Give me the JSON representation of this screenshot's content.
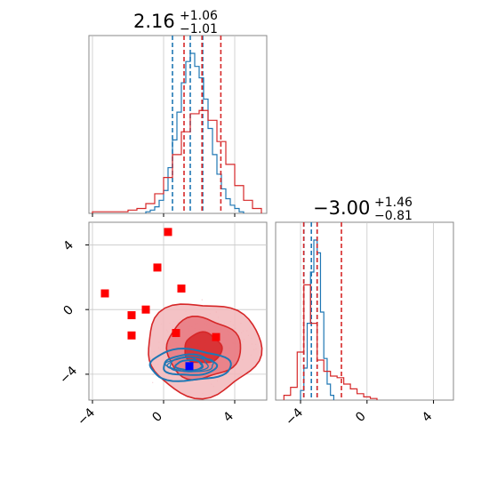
{
  "chart_data": [
    {
      "type": "histogram",
      "panel": "marginal-param-1",
      "title": {
        "median": "2.16",
        "upper": "+1.06",
        "lower": "−1.01"
      },
      "xlim": [
        -4.2,
        5.8
      ],
      "grid": true,
      "series": [
        {
          "color": "#1f77b4",
          "bin_edges": [
            -1.0,
            -0.75,
            -0.5,
            -0.25,
            0.0,
            0.25,
            0.5,
            0.75,
            1.0,
            1.25,
            1.5,
            1.75,
            2.0,
            2.25,
            2.5,
            2.75,
            3.0,
            3.25,
            3.5,
            3.75,
            4.0,
            4.25,
            4.5
          ],
          "counts": [
            1,
            2,
            4,
            8,
            14,
            28,
            45,
            62,
            80,
            93,
            98,
            90,
            83,
            70,
            52,
            36,
            24,
            15,
            9,
            5,
            3,
            1
          ],
          "quantiles": [
            0.5,
            1.5,
            2.2
          ]
        },
        {
          "color": "#d62728",
          "bin_edges": [
            -4.0,
            -3.5,
            -3.0,
            -2.5,
            -2.0,
            -1.5,
            -1.0,
            -0.5,
            0.0,
            0.5,
            1.0,
            1.5,
            2.0,
            2.5,
            3.0,
            3.5,
            4.0,
            4.5,
            5.0,
            5.5
          ],
          "counts": [
            1,
            1,
            1,
            1,
            2,
            3,
            6,
            12,
            22,
            36,
            50,
            61,
            63,
            57,
            44,
            30,
            17,
            8,
            3
          ],
          "quantiles": [
            1.15,
            2.16,
            3.22
          ]
        }
      ]
    },
    {
      "type": "histogram",
      "panel": "marginal-param-2",
      "title": {
        "median": "−3.00",
        "upper": "+1.46",
        "lower": "−0.81"
      },
      "xlim": [
        -5.5,
        5.2
      ],
      "xticks": [
        "−4",
        "0",
        "4"
      ],
      "grid": true,
      "series": [
        {
          "color": "#1f77b4",
          "bin_edges": [
            -4.0,
            -3.8,
            -3.6,
            -3.4,
            -3.2,
            -3.0,
            -2.8,
            -2.6,
            -2.4,
            -2.2,
            -2.0
          ],
          "counts": [
            6,
            20,
            48,
            80,
            100,
            92,
            55,
            26,
            10,
            3
          ],
          "quantiles": [
            -3.8,
            -3.35,
            -3.0
          ]
        },
        {
          "color": "#d62728",
          "bin_edges": [
            -5.0,
            -4.6,
            -4.2,
            -3.8,
            -3.4,
            -3.0,
            -2.6,
            -2.2,
            -1.8,
            -1.4,
            -1.0,
            -0.6,
            -0.2,
            0.2,
            0.6
          ],
          "counts": [
            3,
            8,
            30,
            72,
            48,
            25,
            18,
            15,
            14,
            10,
            7,
            4,
            2,
            1
          ],
          "quantiles": [
            -3.81,
            -3.0,
            -1.54
          ]
        }
      ]
    },
    {
      "type": "contour",
      "panel": "joint-param-1-param-2",
      "xlim": [
        -4.2,
        5.8
      ],
      "ylim": [
        -5.6,
        5.4
      ],
      "xticks": [
        "−4",
        "0",
        "4"
      ],
      "yticks": [
        "−4",
        "0",
        "4"
      ],
      "grid": true,
      "series": [
        {
          "color": "#d62728",
          "style": "filled-contours",
          "center": [
            2.2,
            -2.4
          ],
          "spread": [
            1.05,
            0.95
          ],
          "levels": [
            0.39,
            0.86,
            0.99
          ]
        },
        {
          "color": "#1f77b4",
          "style": "line-contours",
          "center": [
            1.45,
            -3.45
          ],
          "spread": [
            0.75,
            0.32
          ],
          "levels": [
            0.39,
            0.86,
            0.99
          ]
        }
      ],
      "markers_red": [
        {
          "x": 0.25,
          "y": 4.8
        },
        {
          "x": -0.35,
          "y": 2.6
        },
        {
          "x": 1.0,
          "y": 1.3
        },
        {
          "x": -3.3,
          "y": 1.0
        },
        {
          "x": -1.0,
          "y": 0.0
        },
        {
          "x": -1.8,
          "y": -0.35
        },
        {
          "x": -1.8,
          "y": -1.6
        },
        {
          "x": 0.7,
          "y": -1.45
        },
        {
          "x": 2.95,
          "y": -1.7
        }
      ],
      "marker_blue": {
        "x": 1.45,
        "y": -3.5
      }
    }
  ]
}
